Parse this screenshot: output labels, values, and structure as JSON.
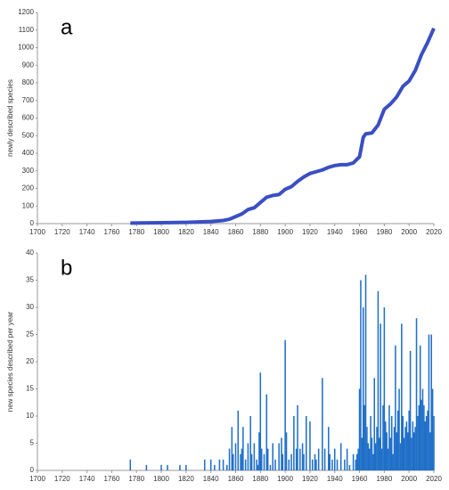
{
  "chart_data": [
    {
      "type": "line",
      "panel_label": "a",
      "ylabel": "newly described species",
      "color": "#3a4fc4",
      "x": [
        1775,
        1800,
        1820,
        1840,
        1850,
        1855,
        1860,
        1865,
        1870,
        1875,
        1880,
        1885,
        1890,
        1895,
        1900,
        1905,
        1910,
        1915,
        1920,
        1925,
        1930,
        1935,
        1940,
        1945,
        1950,
        1955,
        1960,
        1963,
        1965,
        1970,
        1975,
        1980,
        1985,
        1990,
        1995,
        2000,
        2005,
        2010,
        2015,
        2020
      ],
      "values": [
        3,
        5,
        7,
        12,
        18,
        25,
        40,
        55,
        80,
        90,
        120,
        150,
        160,
        165,
        195,
        210,
        240,
        265,
        285,
        295,
        305,
        320,
        330,
        335,
        335,
        345,
        380,
        490,
        510,
        515,
        560,
        650,
        680,
        720,
        780,
        810,
        870,
        960,
        1030,
        1110
      ],
      "xlim": [
        1700,
        2020
      ],
      "xticks": [
        1700,
        1720,
        1740,
        1760,
        1780,
        1800,
        1820,
        1840,
        1860,
        1880,
        1900,
        1920,
        1940,
        1960,
        1980,
        2000,
        2020
      ],
      "ylim": [
        0,
        1200
      ],
      "yticks": [
        0,
        100,
        200,
        300,
        400,
        500,
        600,
        700,
        800,
        900,
        1000,
        1100,
        1200
      ]
    },
    {
      "type": "bar",
      "panel_label": "b",
      "ylabel": "new species described per year",
      "color": "#1f6fc8",
      "x": [
        1775,
        1788,
        1800,
        1805,
        1815,
        1820,
        1835,
        1840,
        1843,
        1847,
        1850,
        1853,
        1855,
        1857,
        1858,
        1860,
        1862,
        1864,
        1865,
        1866,
        1868,
        1870,
        1872,
        1873,
        1875,
        1877,
        1878,
        1879,
        1880,
        1881,
        1883,
        1885,
        1886,
        1888,
        1890,
        1892,
        1895,
        1897,
        1898,
        1900,
        1901,
        1903,
        1905,
        1907,
        1909,
        1910,
        1912,
        1914,
        1915,
        1917,
        1920,
        1922,
        1924,
        1925,
        1927,
        1930,
        1932,
        1935,
        1936,
        1938,
        1940,
        1942,
        1945,
        1948,
        1950,
        1952,
        1955,
        1957,
        1958,
        1959,
        1960,
        1961,
        1962,
        1963,
        1964,
        1965,
        1966,
        1967,
        1968,
        1969,
        1970,
        1971,
        1972,
        1973,
        1974,
        1975,
        1976,
        1977,
        1978,
        1979,
        1980,
        1981,
        1982,
        1983,
        1984,
        1985,
        1986,
        1987,
        1988,
        1989,
        1990,
        1991,
        1992,
        1993,
        1994,
        1995,
        1996,
        1997,
        1998,
        1999,
        2000,
        2001,
        2002,
        2003,
        2004,
        2005,
        2006,
        2007,
        2008,
        2009,
        2010,
        2011,
        2012,
        2013,
        2014,
        2015,
        2016,
        2017,
        2018,
        2019,
        2020
      ],
      "values": [
        2,
        1,
        1,
        1,
        1,
        1,
        2,
        2,
        1,
        2,
        2,
        1,
        4,
        8,
        3,
        5,
        11,
        3,
        4,
        8,
        2,
        5,
        10,
        3,
        5,
        2,
        1,
        7,
        18,
        4,
        3,
        14,
        4,
        1,
        5,
        2,
        5,
        6,
        3,
        24,
        7,
        2,
        3,
        10,
        4,
        12,
        4,
        5,
        3,
        10,
        9,
        2,
        3,
        2,
        4,
        17,
        4,
        8,
        3,
        2,
        4,
        2,
        5,
        2,
        4,
        1,
        3,
        2,
        3,
        4,
        15,
        35,
        6,
        30,
        12,
        36,
        8,
        5,
        4,
        10,
        6,
        3,
        17,
        5,
        8,
        33,
        6,
        27,
        4,
        12,
        30,
        9,
        7,
        4,
        12,
        6,
        10,
        3,
        8,
        23,
        7,
        11,
        15,
        5,
        27,
        10,
        6,
        8,
        9,
        7,
        11,
        22,
        6,
        9,
        7,
        8,
        28,
        10,
        12,
        23,
        13,
        15,
        12,
        9,
        10,
        11,
        25,
        7,
        25,
        15,
        10
      ],
      "xlim": [
        1700,
        2020
      ],
      "xticks": [
        1700,
        1720,
        1740,
        1760,
        1780,
        1800,
        1820,
        1840,
        1860,
        1880,
        1900,
        1920,
        1940,
        1960,
        1980,
        2000,
        2020
      ],
      "ylim": [
        0,
        40
      ],
      "yticks": [
        0,
        5,
        10,
        15,
        20,
        25,
        30,
        35,
        40
      ]
    }
  ]
}
